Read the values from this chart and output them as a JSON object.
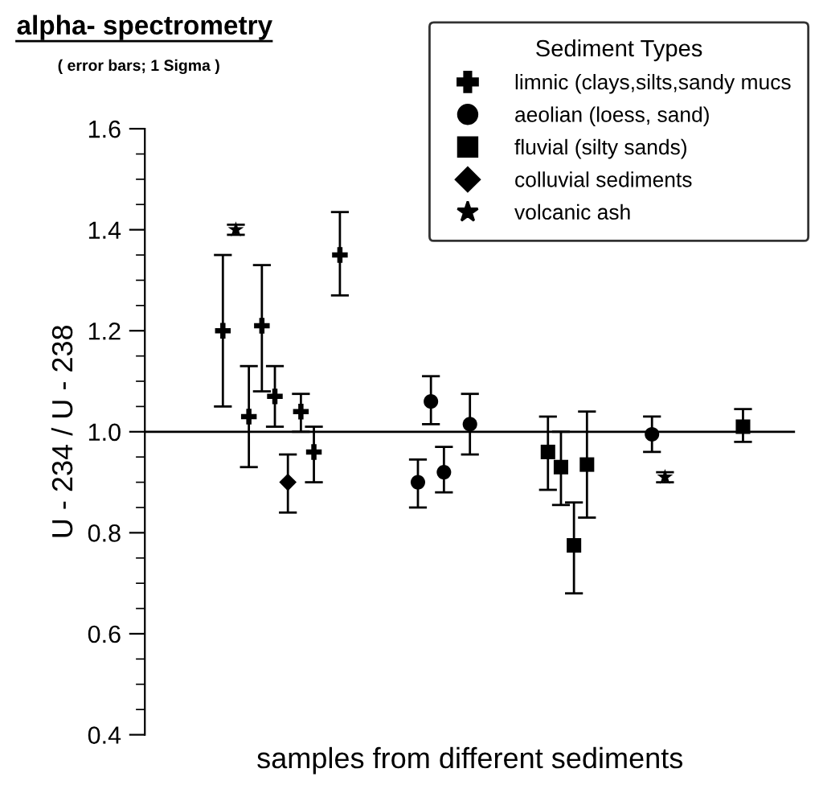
{
  "chart_data": {
    "type": "scatter",
    "title": "alpha- spectrometry",
    "subtitle": "( error bars; 1 Sigma )",
    "xlabel": "samples from different sediments",
    "ylabel": "U - 234 / U - 238",
    "legend_title": "Sediment Types",
    "legend": "top right",
    "categories": [
      null,
      null,
      null,
      null,
      null,
      null,
      null,
      null,
      null,
      null,
      null,
      null,
      null,
      null,
      null,
      null,
      null,
      null,
      null,
      null,
      null,
      null,
      null,
      null,
      null,
      null,
      null,
      null,
      null,
      null,
      null,
      null,
      null,
      null,
      null,
      null,
      null,
      null,
      null,
      null,
      null,
      null,
      null,
      null,
      null,
      null,
      null,
      null,
      null
    ],
    "ylim": [
      0.4,
      1.6
    ],
    "yticks": [
      {
        "value": 0.4,
        "label": "0.4"
      },
      {
        "value": 0.6,
        "label": "0.6"
      },
      {
        "value": 0.8,
        "label": "0.8"
      },
      {
        "value": 1.0,
        "label": "1.0"
      },
      {
        "value": 1.2,
        "label": "1.2"
      },
      {
        "value": 1.4,
        "label": "1.4"
      },
      {
        "value": 1.6,
        "label": "1.6"
      }
    ],
    "grid": false,
    "ref_lines": [
      {
        "axis": "y",
        "value": 1.0,
        "color": "#000000"
      }
    ],
    "series": [
      {
        "name": "limnic (clays,silts,sandy mucs",
        "color": "#000000",
        "marker": "cross",
        "values": [
          null,
          null,
          null,
          null,
          null,
          1.2,
          null,
          1.03,
          1.21,
          1.07,
          null,
          1.04,
          0.96,
          null,
          1.35,
          null,
          null,
          null,
          null,
          null,
          null,
          null,
          null,
          null,
          null,
          null,
          null,
          null,
          null,
          null,
          null,
          null,
          null,
          null,
          null,
          null,
          null,
          null,
          null,
          null,
          null,
          null,
          null,
          null,
          null,
          null,
          null,
          null,
          null
        ],
        "errors": [
          null,
          null,
          null,
          null,
          null,
          [
            1.05,
            1.35
          ],
          null,
          [
            0.93,
            1.13
          ],
          [
            1.08,
            1.33
          ],
          [
            1.01,
            1.13
          ],
          null,
          [
            1.0,
            1.075
          ],
          [
            0.9,
            1.01
          ],
          null,
          [
            1.27,
            1.435
          ],
          null,
          null,
          null,
          null,
          null,
          null,
          null,
          null,
          null,
          null,
          null,
          null,
          null,
          null,
          null,
          null,
          null,
          null,
          null,
          null,
          null,
          null,
          null,
          null,
          null,
          null,
          null,
          null,
          null,
          null,
          null,
          null,
          null,
          null
        ]
      },
      {
        "name": "aeolian (loess, sand)",
        "color": "#000000",
        "marker": "circle",
        "values": [
          null,
          null,
          null,
          null,
          null,
          null,
          null,
          null,
          null,
          null,
          null,
          null,
          null,
          null,
          null,
          null,
          null,
          null,
          null,
          null,
          0.9,
          1.06,
          0.92,
          null,
          1.015,
          null,
          null,
          null,
          null,
          null,
          null,
          null,
          null,
          null,
          null,
          null,
          null,
          null,
          0.995,
          null,
          null,
          null,
          null,
          null,
          null,
          null,
          null,
          null,
          null
        ],
        "errors": [
          null,
          null,
          null,
          null,
          null,
          null,
          null,
          null,
          null,
          null,
          null,
          null,
          null,
          null,
          null,
          null,
          null,
          null,
          null,
          null,
          [
            0.85,
            0.945
          ],
          [
            1.015,
            1.11
          ],
          [
            0.88,
            0.97
          ],
          null,
          [
            0.955,
            1.075
          ],
          null,
          null,
          null,
          null,
          null,
          null,
          null,
          null,
          null,
          null,
          null,
          null,
          null,
          [
            0.96,
            1.03
          ],
          null,
          null,
          null,
          null,
          null,
          null,
          null,
          null,
          null,
          null
        ]
      },
      {
        "name": "fluvial (silty sands)",
        "color": "#000000",
        "marker": "square",
        "values": [
          null,
          null,
          null,
          null,
          null,
          null,
          null,
          null,
          null,
          null,
          null,
          null,
          null,
          null,
          null,
          null,
          null,
          null,
          null,
          null,
          null,
          null,
          null,
          null,
          null,
          null,
          null,
          null,
          null,
          null,
          0.96,
          0.93,
          0.775,
          0.935,
          null,
          null,
          null,
          null,
          null,
          null,
          null,
          null,
          null,
          null,
          null,
          1.01,
          null,
          null,
          null
        ],
        "errors": [
          null,
          null,
          null,
          null,
          null,
          null,
          null,
          null,
          null,
          null,
          null,
          null,
          null,
          null,
          null,
          null,
          null,
          null,
          null,
          null,
          null,
          null,
          null,
          null,
          null,
          null,
          null,
          null,
          null,
          null,
          [
            0.885,
            1.03
          ],
          [
            0.855,
            1.0
          ],
          [
            0.68,
            0.86
          ],
          [
            0.83,
            1.04
          ],
          null,
          null,
          null,
          null,
          null,
          null,
          null,
          null,
          null,
          null,
          null,
          [
            0.98,
            1.045
          ],
          null,
          null,
          null
        ]
      },
      {
        "name": "colluvial sediments",
        "color": "#000000",
        "marker": "diamond",
        "values": [
          null,
          null,
          null,
          null,
          null,
          null,
          null,
          null,
          null,
          null,
          0.9,
          null,
          null,
          null,
          null,
          null,
          null,
          null,
          null,
          null,
          null,
          null,
          null,
          null,
          null,
          null,
          null,
          null,
          null,
          null,
          null,
          null,
          null,
          null,
          null,
          null,
          null,
          null,
          null,
          null,
          null,
          null,
          null,
          null,
          null,
          null,
          null,
          null,
          null
        ],
        "errors": [
          null,
          null,
          null,
          null,
          null,
          null,
          null,
          null,
          null,
          null,
          [
            0.84,
            0.955
          ],
          null,
          null,
          null,
          null,
          null,
          null,
          null,
          null,
          null,
          null,
          null,
          null,
          null,
          null,
          null,
          null,
          null,
          null,
          null,
          null,
          null,
          null,
          null,
          null,
          null,
          null,
          null,
          null,
          null,
          null,
          null,
          null,
          null,
          null,
          null,
          null,
          null,
          null
        ]
      },
      {
        "name": "volcanic ash",
        "color": "#000000",
        "marker": "star",
        "values": [
          null,
          null,
          null,
          null,
          null,
          null,
          1.4,
          null,
          null,
          null,
          null,
          null,
          null,
          null,
          null,
          null,
          null,
          null,
          null,
          null,
          null,
          null,
          null,
          null,
          null,
          null,
          null,
          null,
          null,
          null,
          null,
          null,
          null,
          null,
          null,
          null,
          null,
          null,
          null,
          0.91,
          null,
          null,
          null,
          null,
          null,
          null,
          null,
          null,
          null
        ],
        "errors": [
          null,
          null,
          null,
          null,
          null,
          null,
          [
            1.39,
            1.41
          ],
          null,
          null,
          null,
          null,
          null,
          null,
          null,
          null,
          null,
          null,
          null,
          null,
          null,
          null,
          null,
          null,
          null,
          null,
          null,
          null,
          null,
          null,
          null,
          null,
          null,
          null,
          null,
          null,
          null,
          null,
          null,
          null,
          [
            0.9,
            0.92
          ],
          null,
          null,
          null,
          null,
          null,
          null,
          null,
          null,
          null
        ]
      }
    ]
  }
}
